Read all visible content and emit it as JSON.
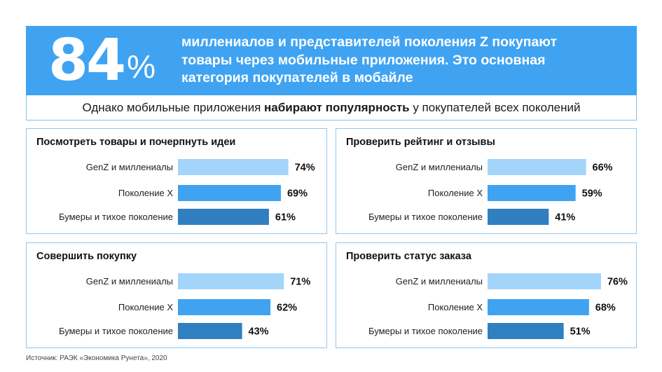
{
  "header": {
    "big_number": "84",
    "big_percent": "%",
    "lines": [
      "миллениалов и представителей поколения Z покупают",
      "товары через мобильные приложения. Это основная",
      "категория покупателей в мобайле"
    ]
  },
  "subline": {
    "before": "Однако мобильные приложения ",
    "bold": "набирают популярность",
    "after": " у покупателей всех поколений"
  },
  "colors": {
    "banner": "#3fa3f2",
    "genz": "#a3d5fb",
    "genx": "#3fa3f2",
    "boomers": "#2f7fc1"
  },
  "chart_data": [
    {
      "type": "bar",
      "title": "Посмотреть товары и почерпнуть идеи",
      "categories": [
        "GenZ и миллениалы",
        "Поколение X",
        "Бумеры и тихое поколение"
      ],
      "values": [
        74,
        69,
        61
      ],
      "value_labels": [
        "74%",
        "69%",
        "61%"
      ]
    },
    {
      "type": "bar",
      "title": "Проверить рейтинг и отзывы",
      "categories": [
        "GenZ и миллениалы",
        "Поколение X",
        "Бумеры и тихое поколение"
      ],
      "values": [
        66,
        59,
        41
      ],
      "value_labels": [
        "66%",
        "59%",
        "41%"
      ]
    },
    {
      "type": "bar",
      "title": "Совершить покупку",
      "categories": [
        "GenZ и миллениалы",
        "Поколение X",
        "Бумеры и тихое поколение"
      ],
      "values": [
        71,
        62,
        43
      ],
      "value_labels": [
        "71%",
        "62%",
        "43%"
      ]
    },
    {
      "type": "bar",
      "title": "Проверить статус заказа",
      "categories": [
        "GenZ и миллениалы",
        "Поколение X",
        "Бумеры и тихое поколение"
      ],
      "values": [
        76,
        68,
        51
      ],
      "value_labels": [
        "76%",
        "68%",
        "51%"
      ]
    }
  ],
  "source": "Источник: РАЭК «Экономика Рунета», 2020"
}
